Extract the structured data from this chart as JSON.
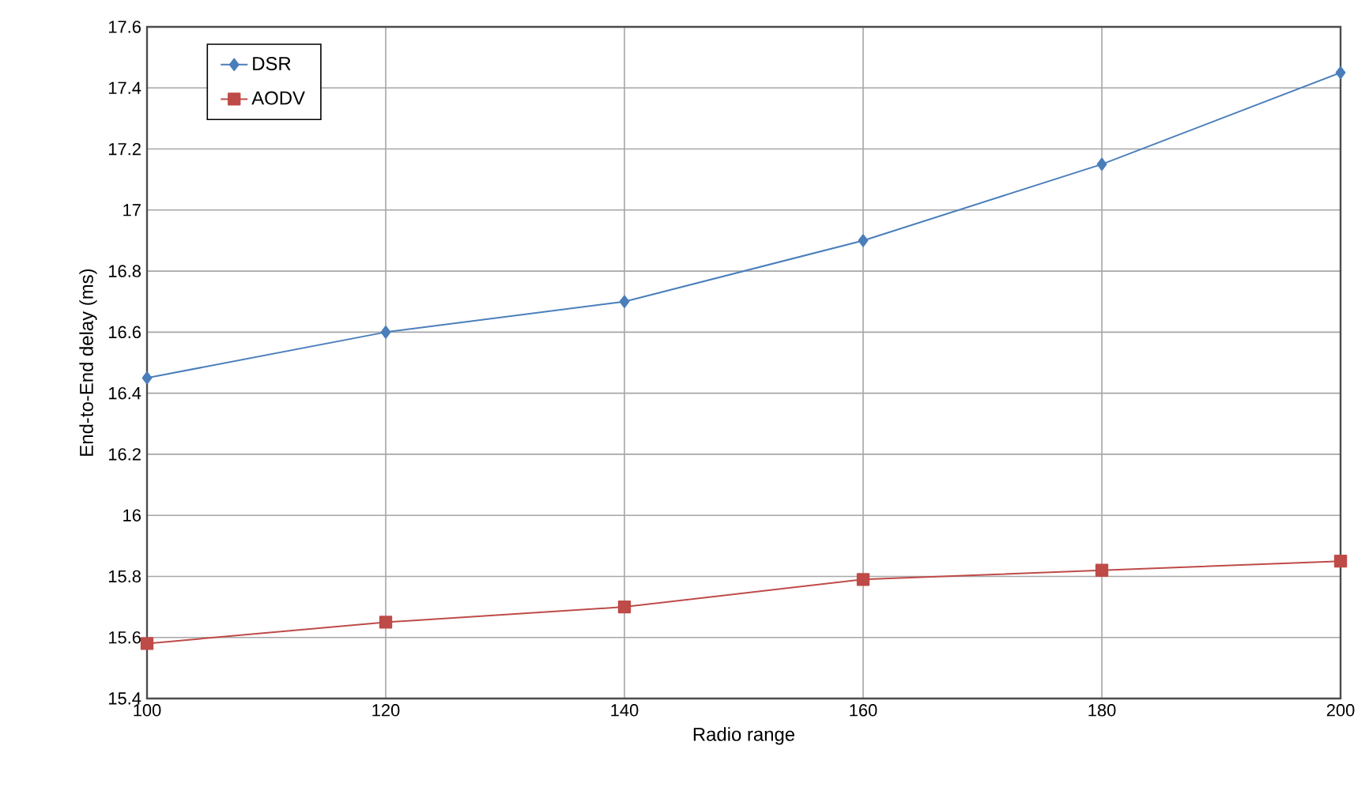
{
  "chart_data": {
    "type": "line",
    "xlabel": "Radio range",
    "ylabel": "End-to-End delay (ms)",
    "x": [
      100,
      120,
      140,
      160,
      180,
      200
    ],
    "series": [
      {
        "name": "DSR",
        "color": "#4a7ebb",
        "marker": "diamond",
        "values": [
          16.45,
          16.6,
          16.7,
          16.9,
          17.15,
          17.45
        ]
      },
      {
        "name": "AODV",
        "color": "#be4b48",
        "marker": "square",
        "values": [
          15.58,
          15.65,
          15.7,
          15.79,
          15.82,
          15.85
        ]
      }
    ],
    "xlim": [
      100,
      200
    ],
    "xticks": [
      100,
      120,
      140,
      160,
      180,
      200
    ],
    "ylim": [
      15.4,
      17.6
    ],
    "yticks": [
      15.4,
      15.6,
      15.8,
      16,
      16.2,
      16.4,
      16.6,
      16.8,
      17,
      17.2,
      17.4,
      17.6
    ],
    "grid": true,
    "legend": "top left",
    "line_style": "solid"
  }
}
